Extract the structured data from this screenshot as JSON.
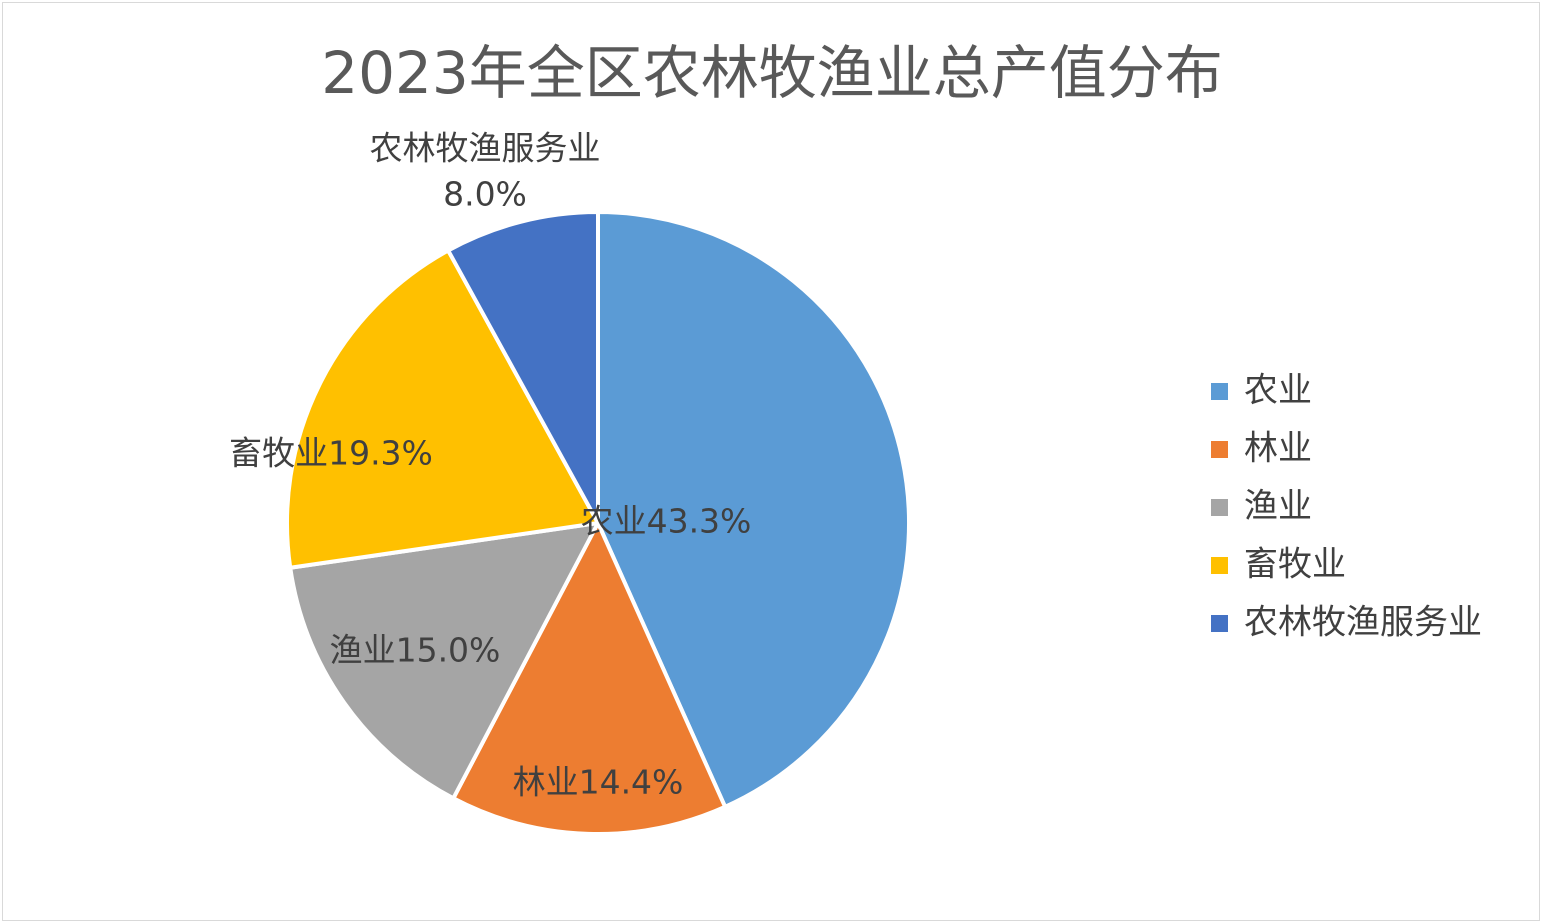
{
  "chart_data": {
    "type": "pie",
    "title": "2023年全区农林牧渔业总产值分布",
    "legend_position": "right",
    "slices": [
      {
        "name": "农业",
        "value": 43.3,
        "label": "农业43.3%",
        "color": "#5b9bd5"
      },
      {
        "name": "林业",
        "value": 14.4,
        "label": "林业14.4%",
        "color": "#ed7d31"
      },
      {
        "name": "渔业",
        "value": 15.0,
        "label": "渔业15.0%",
        "color": "#a5a5a5"
      },
      {
        "name": "畜牧业",
        "value": 19.3,
        "label": "畜牧业19.3%",
        "color": "#ffc000"
      },
      {
        "name": "农林牧渔服务业",
        "value": 8.0,
        "label": "农林牧渔服务业",
        "label_value": "8.0%",
        "color": "#4472c4"
      }
    ]
  }
}
